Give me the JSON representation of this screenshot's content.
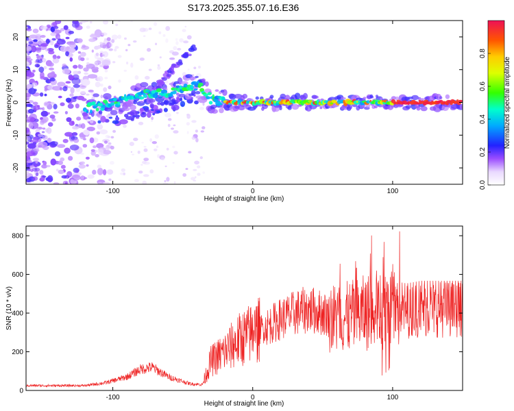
{
  "title": "S173.2025.355.07.16.E36",
  "chart_data": [
    {
      "type": "heatmap",
      "xlabel": "Height of straight line (km)",
      "ylabel": "Frequency (Hz)",
      "xlim": [
        -162,
        150
      ],
      "ylim": [
        -25,
        25
      ],
      "xticks": [
        -100,
        0,
        100
      ],
      "yticks": [
        -20,
        -10,
        0,
        10,
        20
      ],
      "colorbar": {
        "label": "Normalized spectral amplitude",
        "range": [
          0,
          1
        ],
        "ticks": [
          0.0,
          0.2,
          0.4,
          0.6,
          0.8
        ]
      },
      "ridge": [
        {
          "x": -120,
          "y": -2
        },
        {
          "x": -100,
          "y": 0
        },
        {
          "x": -80,
          "y": 2
        },
        {
          "x": -60,
          "y": 3
        },
        {
          "x": -45,
          "y": 5
        },
        {
          "x": -38,
          "y": 5
        },
        {
          "x": -30,
          "y": 1
        },
        {
          "x": -20,
          "y": 0
        },
        {
          "x": 0,
          "y": 0
        },
        {
          "x": 50,
          "y": 0
        },
        {
          "x": 100,
          "y": 0
        },
        {
          "x": 150,
          "y": 0
        }
      ]
    },
    {
      "type": "line",
      "xlabel": "Height of straight line (km)",
      "ylabel": "SNR (10 * v/v)",
      "xlim": [
        -162,
        150
      ],
      "ylim": [
        0,
        850
      ],
      "xticks": [
        -100,
        0,
        100
      ],
      "yticks": [
        0,
        200,
        400,
        600,
        800
      ],
      "color": "#ee2222",
      "envelope": [
        {
          "x": -162,
          "y": 25
        },
        {
          "x": -120,
          "y": 25
        },
        {
          "x": -105,
          "y": 40
        },
        {
          "x": -90,
          "y": 70
        },
        {
          "x": -80,
          "y": 110
        },
        {
          "x": -72,
          "y": 120
        },
        {
          "x": -60,
          "y": 70
        },
        {
          "x": -45,
          "y": 35
        },
        {
          "x": -36,
          "y": 30
        },
        {
          "x": -30,
          "y": 150
        },
        {
          "x": -20,
          "y": 200
        },
        {
          "x": -10,
          "y": 260
        },
        {
          "x": 0,
          "y": 300
        },
        {
          "x": 10,
          "y": 330
        },
        {
          "x": 20,
          "y": 370
        },
        {
          "x": 30,
          "y": 400
        },
        {
          "x": 40,
          "y": 420
        },
        {
          "x": 50,
          "y": 400
        },
        {
          "x": 60,
          "y": 370
        },
        {
          "x": 70,
          "y": 380
        },
        {
          "x": 80,
          "y": 400
        },
        {
          "x": 90,
          "y": 420
        },
        {
          "x": 100,
          "y": 420
        },
        {
          "x": 110,
          "y": 410
        },
        {
          "x": 120,
          "y": 420
        },
        {
          "x": 130,
          "y": 420
        },
        {
          "x": 140,
          "y": 420
        },
        {
          "x": 150,
          "y": 420
        }
      ]
    }
  ]
}
